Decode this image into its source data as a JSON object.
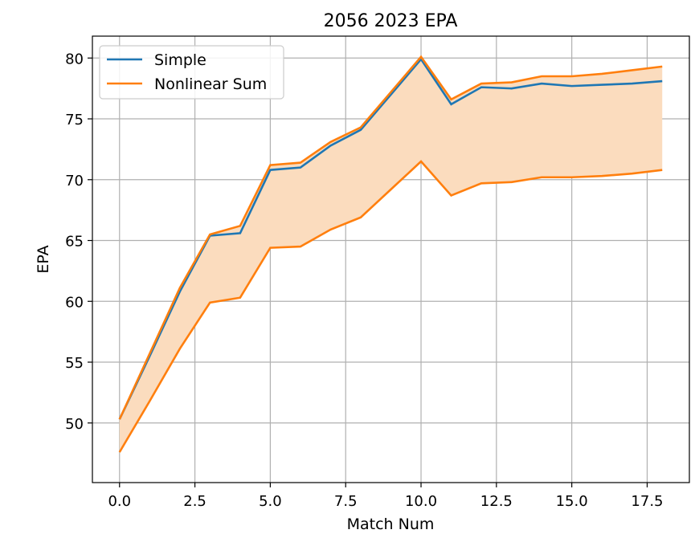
{
  "chart_data": {
    "type": "line",
    "title": "2056 2023 EPA",
    "xlabel": "Match Num",
    "ylabel": "EPA",
    "xlim": [
      -0.9,
      18.9
    ],
    "ylim": [
      45.1,
      81.8
    ],
    "xticks": [
      "0.0",
      "2.5",
      "5.0",
      "7.5",
      "10.0",
      "12.5",
      "15.0",
      "17.5"
    ],
    "yticks": [
      "50",
      "55",
      "60",
      "65",
      "70",
      "75",
      "80"
    ],
    "grid": true,
    "legend_position": "top-left",
    "x": [
      0,
      1,
      2,
      3,
      4,
      5,
      6,
      7,
      8,
      9,
      10,
      11,
      12,
      13,
      14,
      15,
      16,
      17,
      18
    ],
    "series": [
      {
        "name": "Simple",
        "color": "#1f77b4",
        "values": [
          50.3,
          55.5,
          60.8,
          65.4,
          65.6,
          70.8,
          71.0,
          72.8,
          74.1,
          77.0,
          79.9,
          76.2,
          77.6,
          77.5,
          77.9,
          77.7,
          77.8,
          77.9,
          78.1
        ]
      },
      {
        "name": "Nonlinear Sum",
        "color": "#ff7f0e",
        "values": [
          50.3,
          55.7,
          61.1,
          65.5,
          66.2,
          71.2,
          71.4,
          73.1,
          74.3,
          77.2,
          80.1,
          76.6,
          77.9,
          78.0,
          78.5,
          78.5,
          78.7,
          79.0,
          79.3
        ],
        "lower": [
          47.6,
          51.8,
          56.1,
          59.9,
          60.3,
          64.4,
          64.5,
          65.9,
          66.9,
          69.2,
          71.5,
          68.7,
          69.7,
          69.8,
          70.2,
          70.2,
          70.3,
          70.5,
          70.8
        ],
        "band_color": "#fbdcbe"
      }
    ]
  }
}
